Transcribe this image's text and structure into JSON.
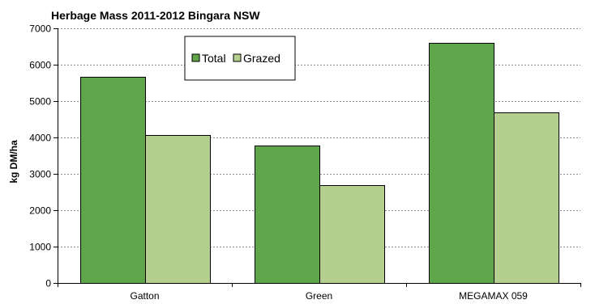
{
  "chart_data": {
    "type": "bar",
    "title": "Herbage Mass 2011-2012 Bingara NSW",
    "xlabel": "",
    "ylabel": "kg DM/ha",
    "categories": [
      "Gatton",
      "Green",
      "MEGAMAX 059"
    ],
    "series": [
      {
        "name": "Total",
        "values": [
          5670,
          3780,
          6600
        ],
        "color": "#5fa64a"
      },
      {
        "name": "Grazed",
        "values": [
          4060,
          2690,
          4700
        ],
        "color": "#b5d08e"
      }
    ],
    "ylim": [
      0,
      7000
    ],
    "yticks": [
      0,
      1000,
      2000,
      3000,
      4000,
      5000,
      6000,
      7000
    ],
    "grid": true,
    "legend_position": "top-center",
    "bar_stroke": "#000000",
    "grid_color": "#888888"
  }
}
